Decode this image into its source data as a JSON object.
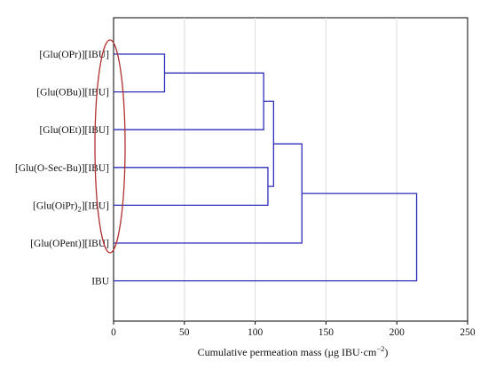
{
  "chart_data": {
    "type": "dendrogram",
    "orientation": "horizontal",
    "title": "",
    "xlabel": "Cumulative permeation mass (μg IBU·cm",
    "xlabel_sup": "−2",
    "xlabel_end": ")",
    "xlim": [
      0,
      250
    ],
    "xticks": [
      0,
      50,
      100,
      150,
      200,
      250
    ],
    "grid": true,
    "line_color": "#2e2eb8",
    "highlight_color": "#b03030",
    "leaves": [
      {
        "label": "[Glu(OPr)][IBU]"
      },
      {
        "label": "[Glu(OBu)][IBU]"
      },
      {
        "label": "[Glu(OEt)][IBU]"
      },
      {
        "label": "[Glu(O-Sec-Bu)][IBU]"
      },
      {
        "label": "[Glu(OiPr)",
        "sub": "2",
        "label_end": "][IBU]"
      },
      {
        "label": "[Glu(OPent)][IBU]"
      },
      {
        "label": "IBU"
      }
    ],
    "merges": [
      {
        "a": {
          "leaf": 0
        },
        "b": {
          "leaf": 1
        },
        "height": 36
      },
      {
        "a": {
          "node": 0
        },
        "b": {
          "leaf": 2
        },
        "height": 106
      },
      {
        "a": {
          "leaf": 3
        },
        "b": {
          "leaf": 4
        },
        "height": 109
      },
      {
        "a": {
          "node": 1
        },
        "b": {
          "node": 2
        },
        "height": 113
      },
      {
        "a": {
          "node": 3
        },
        "b": {
          "leaf": 5
        },
        "height": 133
      },
      {
        "a": {
          "node": 4
        },
        "b": {
          "leaf": 6
        },
        "height": 214
      }
    ],
    "highlight": {
      "shape": "ellipse",
      "around": "leaves 0-5"
    }
  }
}
